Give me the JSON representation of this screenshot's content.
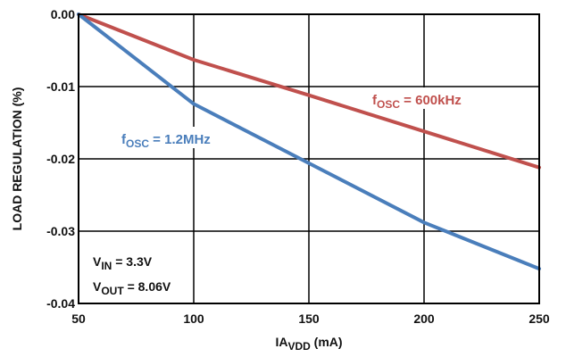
{
  "chart_data": {
    "type": "line",
    "xlabel_main": "IA",
    "xlabel_sub": "VDD",
    "xlabel_unit": " (mA)",
    "ylabel": "LOAD REGULATION (%)",
    "xlim": [
      50,
      250
    ],
    "ylim": [
      -0.04,
      0.0
    ],
    "x_ticks": [
      "50",
      "100",
      "150",
      "200",
      "250"
    ],
    "y_ticks": [
      "0.00",
      "-0.01",
      "-0.02",
      "-0.03",
      "-0.04"
    ],
    "grid": true,
    "series": [
      {
        "label_main": "f",
        "label_sub": "OSC",
        "label_rest": " = 600kHz",
        "color": "#c0504d",
        "x": [
          50,
          100,
          150,
          200,
          250
        ],
        "y": [
          0.0,
          -0.0063,
          -0.0112,
          -0.0162,
          -0.0212
        ]
      },
      {
        "label_main": "f",
        "label_sub": "OSC",
        "label_rest": " = 1.2MHz",
        "color": "#4a7ebb",
        "x": [
          50,
          75,
          100,
          150,
          200,
          250
        ],
        "y": [
          0.0,
          -0.0062,
          -0.0124,
          -0.0206,
          -0.0288,
          -0.0352
        ]
      }
    ],
    "annotations": {
      "vin_main": "V",
      "vin_sub": "IN",
      "vin_rest": " = 3.3V",
      "vout_main": "V",
      "vout_sub": "OUT",
      "vout_rest": " = 8.06V"
    }
  }
}
